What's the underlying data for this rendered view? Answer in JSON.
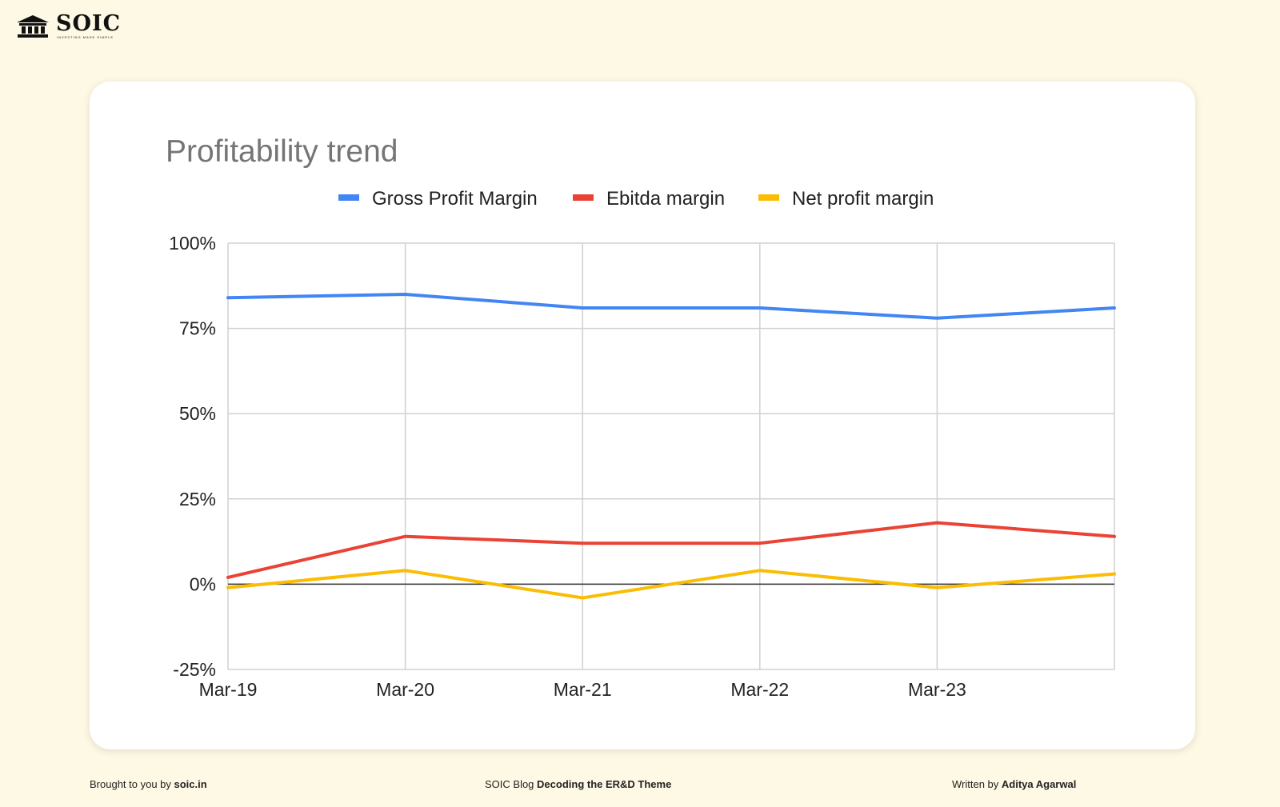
{
  "brand": {
    "name": "SOIC",
    "tagline": "INVESTING MADE SIMPLE",
    "logo_icon": "bank-building-icon"
  },
  "chart_data": {
    "type": "line",
    "title": "Profitability trend",
    "categories": [
      "Mar-19",
      "Mar-20",
      "Mar-21",
      "Mar-22",
      "Mar-23",
      ""
    ],
    "yticks": [
      "100%",
      "75%",
      "50%",
      "25%",
      "0%",
      "-25%"
    ],
    "ylim": [
      -25,
      100
    ],
    "grid": true,
    "legend_position": "top",
    "series": [
      {
        "name": "Gross Profit Margin",
        "color": "#4285f4",
        "values": [
          84,
          85,
          81,
          81,
          78,
          81
        ]
      },
      {
        "name": "Ebitda margin",
        "color": "#ea4335",
        "values": [
          2,
          14,
          12,
          12,
          18,
          14
        ]
      },
      {
        "name": "Net profit margin",
        "color": "#fbbc04",
        "values": [
          -1,
          4,
          -4,
          4,
          -1,
          3
        ]
      }
    ]
  },
  "footer": {
    "left_prefix": "Brought to you by ",
    "left_bold": "soic.in",
    "center_prefix": "SOIC Blog ",
    "center_bold": "Decoding the ER&D Theme",
    "right_prefix": "Written by ",
    "right_bold": "Aditya Agarwal"
  }
}
